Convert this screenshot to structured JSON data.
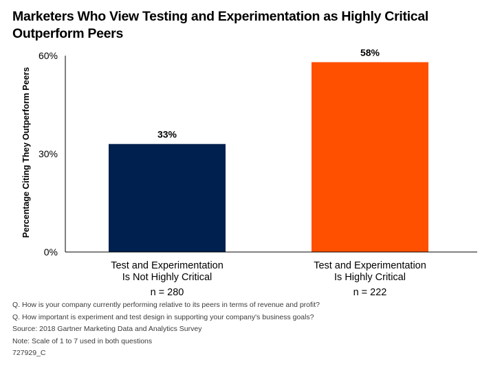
{
  "chart_data": {
    "type": "bar",
    "title": "Marketers Who View Testing and Experimentation as Highly Critical Outperform Peers",
    "ylabel": "Percentage Citing They Outperform Peers",
    "xlabel": "",
    "ylim": [
      0,
      60
    ],
    "yticks": [
      {
        "value": 0,
        "label": "0%"
      },
      {
        "value": 30,
        "label": "30%"
      },
      {
        "value": 60,
        "label": "60%"
      }
    ],
    "grid": false,
    "legend": "none",
    "categories": [
      {
        "label_lines": [
          "Test and Experimentation",
          "Is Not Highly Critical"
        ],
        "sample": "n = 280",
        "value": 33,
        "value_label": "33%",
        "color": "#00204F"
      },
      {
        "label_lines": [
          "Test and Experimentation",
          "Is Highly Critical"
        ],
        "sample": "n = 222",
        "value": 58,
        "value_label": "58%",
        "color": "#FF5000"
      }
    ]
  },
  "footnotes": {
    "q1": "Q. How is your company currently performing relative to its peers in terms of revenue and profit?",
    "q2": "Q. How important is experiment and test design in supporting your company's business goals?",
    "source": "Source: 2018 Gartner Marketing Data and Analytics Survey",
    "note": "Note: Scale of 1 to 7 used in both questions",
    "id": "727929_C"
  },
  "colors": {
    "axis": "#000000",
    "footnote_text": "#3a3a3a"
  }
}
